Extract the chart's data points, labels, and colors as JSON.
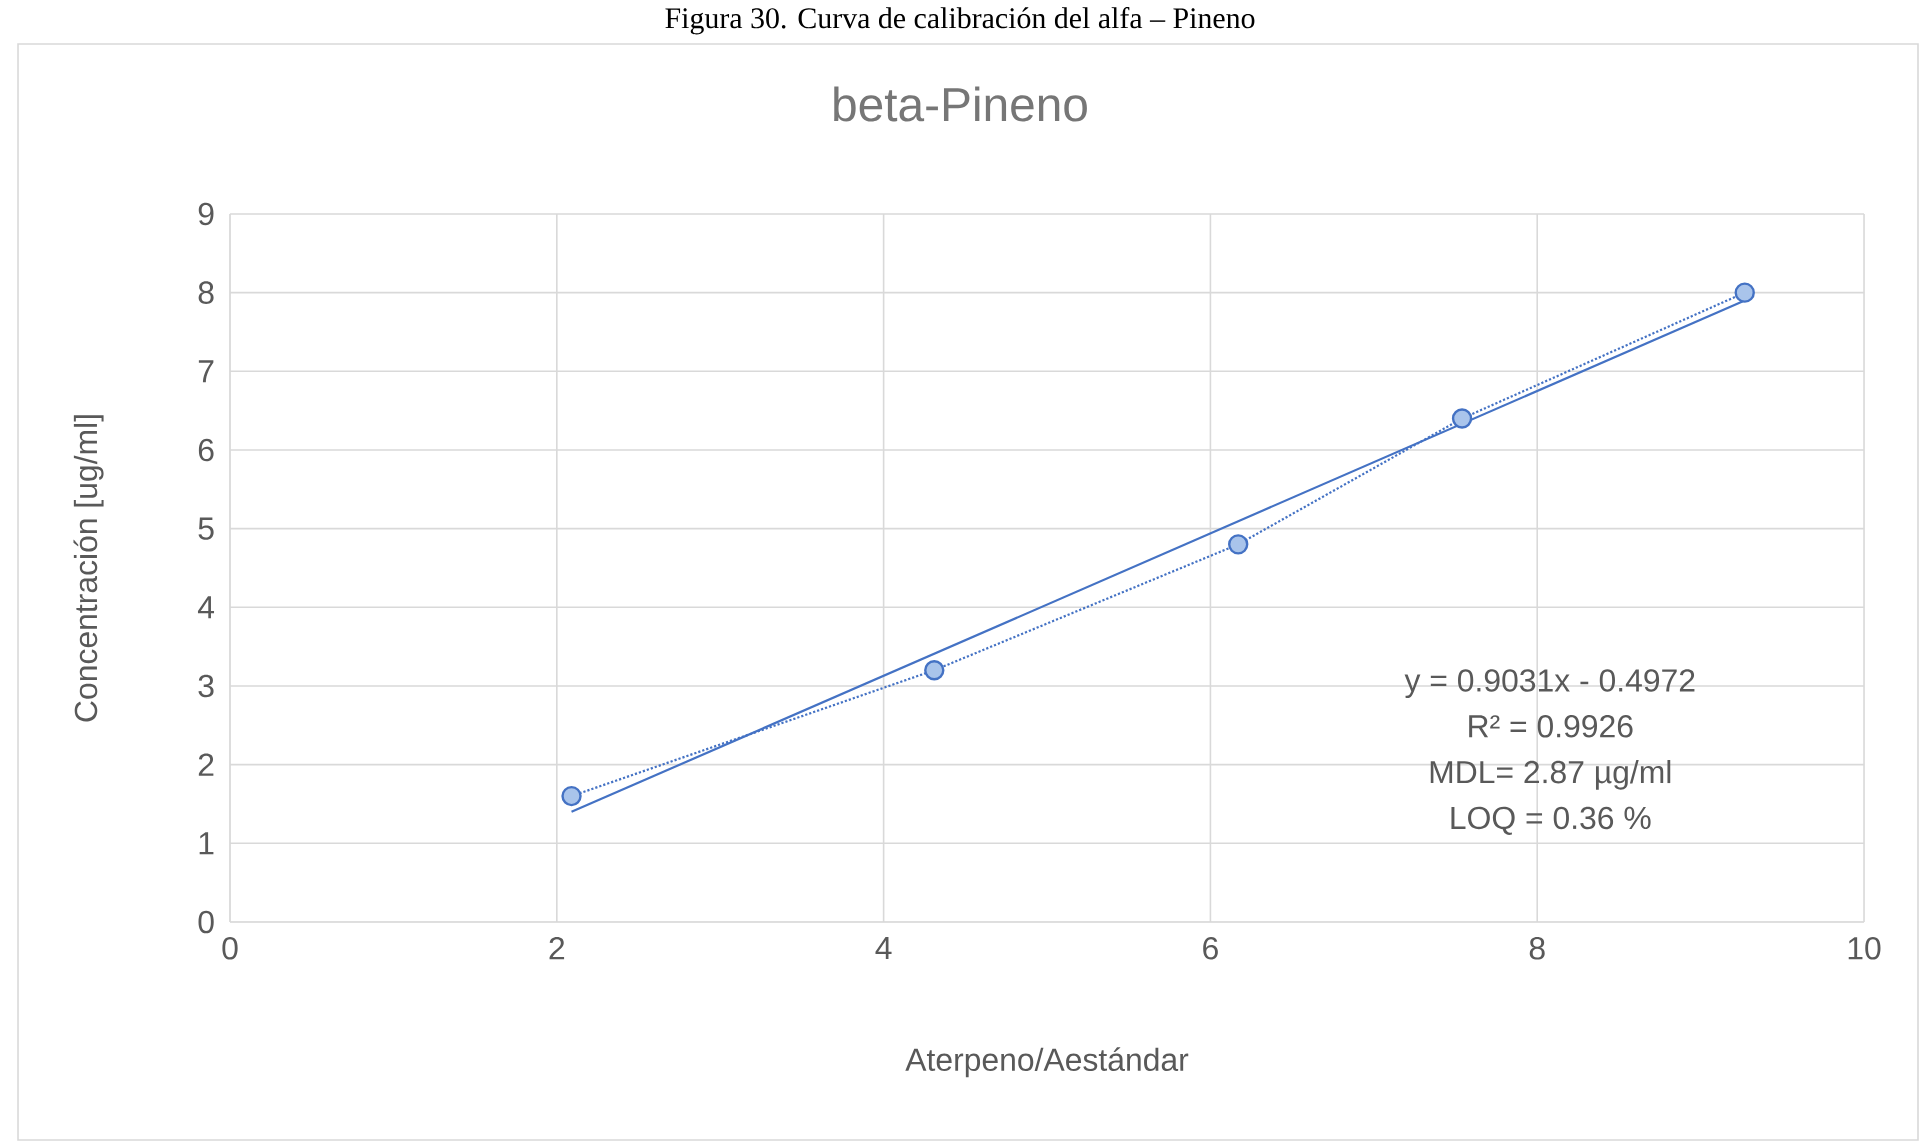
{
  "chart_data": {
    "type": "line",
    "title": "beta-Pineno",
    "xlabel": "Aterpeno/Aestándar",
    "ylabel": "Concentración  [ug/ml]",
    "annotations": [
      "Figura 30. Curva de calibración del alfa – Pineno",
      "y = 0.9031x - 0.4972",
      "R² = 0.9926",
      "MDL= 2.87 µg/ml",
      "LOQ = 0.36 %"
    ],
    "xlim": [
      0,
      10
    ],
    "ylim": [
      0,
      9
    ],
    "xticks": [
      0,
      2,
      4,
      6,
      8,
      10
    ],
    "yticks": [
      0,
      1,
      2,
      3,
      4,
      5,
      6,
      7,
      8,
      9
    ],
    "grid": true,
    "marker": "circle",
    "series": [
      {
        "color": "#4472c4",
        "x": [
          2.09,
          4.31,
          6.17,
          7.54,
          9.27
        ],
        "values": [
          1.6,
          3.2,
          4.8,
          6.4,
          8.0
        ],
        "line_style": "dotted"
      },
      {
        "color": "#4472c4",
        "marker": "none",
        "line_style": "solid",
        "x": [
          2.09,
          9.27
        ],
        "values": [
          1.4,
          7.9
        ]
      }
    ]
  }
}
